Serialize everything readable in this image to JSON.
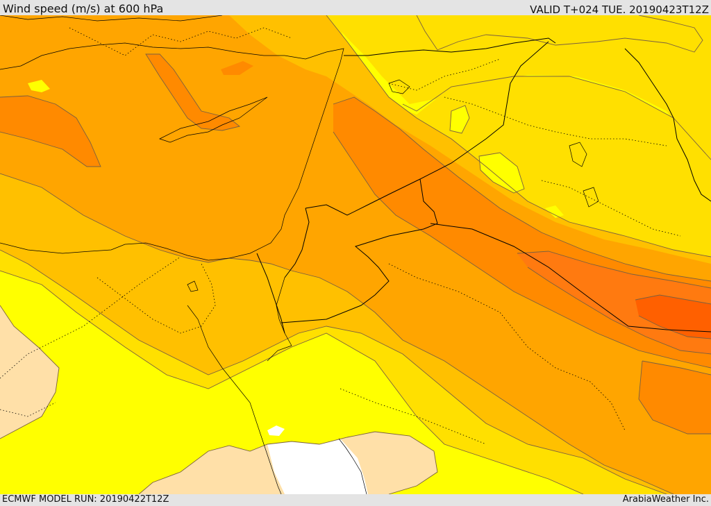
{
  "header": {
    "title": "Wind speed (m/s) at 600 hPa",
    "valid": "VALID T+024 TUE. 20190423T12Z"
  },
  "footer": {
    "model_run": "ECMWF MODEL RUN: 20190422T12Z",
    "credit": "ArabiaWeather Inc."
  },
  "colors": {
    "white": "#ffffff",
    "light_tan": "#ffe0a8",
    "yellow": "#ffff00",
    "gold": "#ffe000",
    "amber": "#ffc000",
    "orange": "#ffa500",
    "dark_orange": "#ff8a00",
    "red_orange": "#ff6000",
    "border_line": "#000000",
    "contour_line": "#7a6040"
  }
}
